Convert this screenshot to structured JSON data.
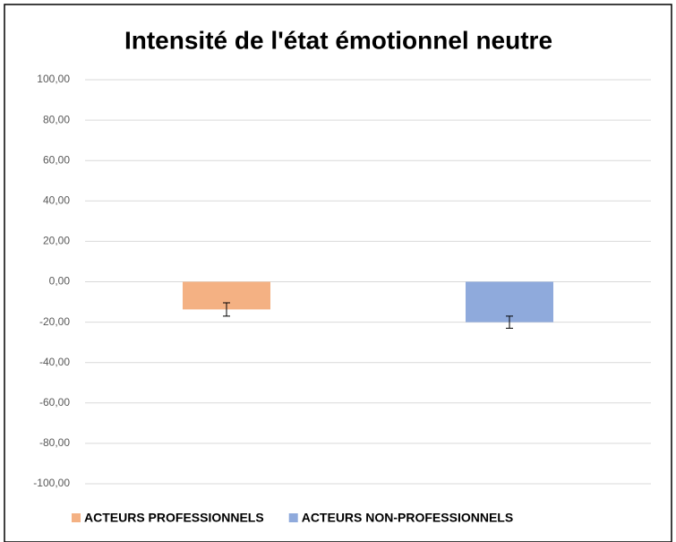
{
  "chart_data": {
    "type": "bar",
    "title": "Intensité de l'état émotionnel neutre",
    "categories": [
      null
    ],
    "series": [
      {
        "name": "ACTEURS PROFESSIONNELS",
        "color": "#f4b183",
        "values": [
          -13.7
        ],
        "errors": [
          3.3
        ]
      },
      {
        "name": "ACTEURS NON-PROFESSIONNELS",
        "color": "#8faadc",
        "values": [
          -20
        ],
        "errors": [
          3
        ]
      }
    ],
    "ylim": [
      -100,
      100
    ],
    "yticks": [
      {
        "value": 100,
        "label": "100,00"
      },
      {
        "value": 80,
        "label": "80,00"
      },
      {
        "value": 60,
        "label": "60,00"
      },
      {
        "value": 40,
        "label": "40,00"
      },
      {
        "value": 20,
        "label": "20,00"
      },
      {
        "value": 0,
        "label": "0,00"
      },
      {
        "value": -20,
        "label": "-20,00"
      },
      {
        "value": -40,
        "label": "-40,00"
      },
      {
        "value": -60,
        "label": "-60,00"
      },
      {
        "value": -80,
        "label": "-80,00"
      },
      {
        "value": -100,
        "label": "-100,00"
      }
    ],
    "grid": true,
    "legend": "bottom"
  }
}
